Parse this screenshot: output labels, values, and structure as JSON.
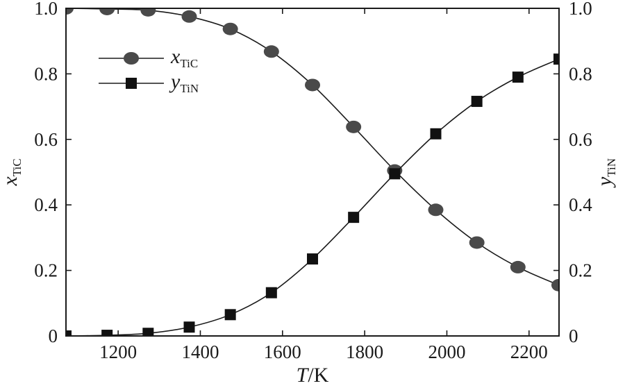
{
  "chart_data": {
    "type": "line",
    "xlabel": {
      "italic": "T",
      "rest": "/K"
    },
    "ylabel_left": {
      "main": "x",
      "sub": "TiC"
    },
    "ylabel_right": {
      "main": "y",
      "sub": "TiN"
    },
    "xlim": [
      1073,
      2273
    ],
    "ylim": [
      0,
      1
    ],
    "ylim_right": [
      0,
      1
    ],
    "xticks": [
      1200,
      1400,
      1600,
      1800,
      2000,
      2200
    ],
    "yticks": [
      0,
      0.2,
      0.4,
      0.6,
      0.8,
      1.0
    ],
    "ytick_labels": [
      "0",
      "0.2",
      "0.4",
      "0.6",
      "0.8",
      "1.0"
    ],
    "grid": false,
    "legend_position": "top-left",
    "x": [
      1073,
      1173,
      1273,
      1373,
      1473,
      1573,
      1673,
      1773,
      1873,
      1973,
      2073,
      2173,
      2273
    ],
    "series": [
      {
        "name_main": "x",
        "name_sub": "TiC",
        "axis": "left",
        "marker": "circle",
        "color": "#4a4a4a",
        "values": [
          1.0,
          0.998,
          0.994,
          0.975,
          0.937,
          0.868,
          0.766,
          0.638,
          0.505,
          0.385,
          0.285,
          0.21,
          0.155
        ]
      },
      {
        "name_main": "y",
        "name_sub": "TiN",
        "axis": "right",
        "marker": "square",
        "color": "#111111",
        "values": [
          0.0,
          0.002,
          0.008,
          0.027,
          0.065,
          0.132,
          0.235,
          0.362,
          0.495,
          0.617,
          0.716,
          0.79,
          0.845
        ]
      }
    ]
  }
}
